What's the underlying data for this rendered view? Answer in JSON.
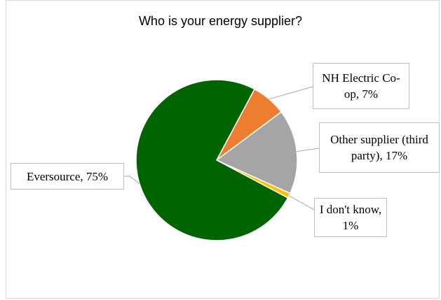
{
  "chart_data": {
    "type": "pie",
    "title": "Who is your energy supplier?",
    "slices": [
      {
        "label": "NH Electric Co-op",
        "value": 7,
        "display": "NH Electric Co-op, 7%",
        "color": "#ed7d31"
      },
      {
        "label": "Other supplier (third party)",
        "value": 17,
        "display": "Other supplier (third party), 17%",
        "color": "#a5a5a5"
      },
      {
        "label": "I don't know",
        "value": 1,
        "display": "I don't know, 1%",
        "color": "#ffc000"
      },
      {
        "label": "Eversource",
        "value": 75,
        "display": "Eversource, 75%",
        "color": "#006400"
      }
    ],
    "legend": "none",
    "data_labels": "callouts"
  }
}
